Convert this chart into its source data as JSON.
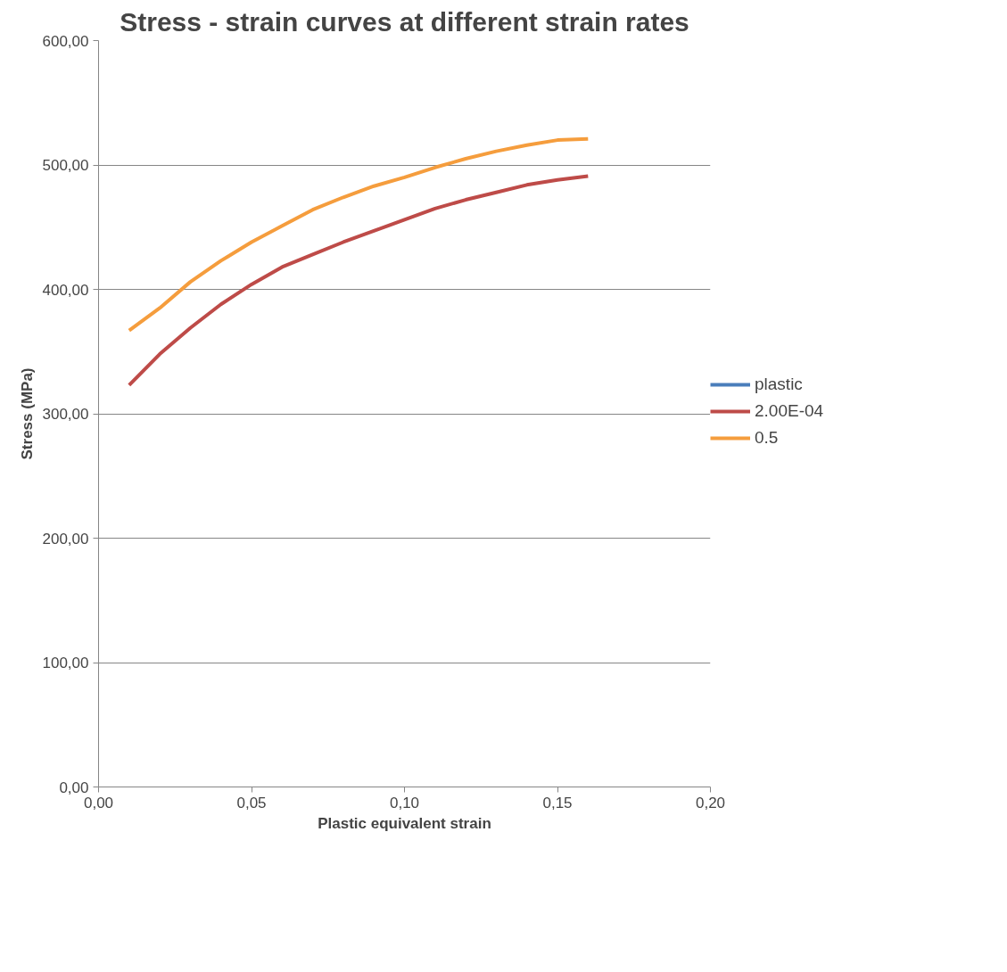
{
  "chart_data": {
    "type": "line",
    "title": "Stress - strain curves at different strain rates",
    "xlabel": "Plastic equivalent strain",
    "ylabel": "Stress (MPa)",
    "x": [
      0.01,
      0.02,
      0.03,
      0.04,
      0.05,
      0.06,
      0.07,
      0.08,
      0.09,
      0.1,
      0.11,
      0.12,
      0.13,
      0.14,
      0.15,
      0.16
    ],
    "series": [
      {
        "name": "plastic",
        "color": "#4a7ebb",
        "values": [
          null,
          null,
          null,
          null,
          null,
          null,
          null,
          null,
          null,
          null,
          null,
          null,
          null,
          null,
          null,
          null
        ]
      },
      {
        "name": "2.00E-04",
        "color": "#be4b48",
        "values": [
          323,
          348,
          369,
          388,
          404,
          418,
          428,
          438,
          447,
          456,
          465,
          472,
          478,
          484,
          488,
          491
        ]
      },
      {
        "name": "0.5",
        "color": "#f59d3d",
        "values": [
          367,
          385,
          406,
          423,
          438,
          451,
          464,
          474,
          483,
          490,
          498,
          505,
          511,
          516,
          520,
          521
        ]
      }
    ],
    "xlim": [
      0,
      0.2
    ],
    "ylim": [
      0,
      600
    ],
    "xticks": [
      {
        "value": 0,
        "label": "0,00"
      },
      {
        "value": 0.05,
        "label": "0,05"
      },
      {
        "value": 0.1,
        "label": "0,10"
      },
      {
        "value": 0.15,
        "label": "0,15"
      },
      {
        "value": 0.2,
        "label": "0,20"
      }
    ],
    "yticks": [
      {
        "value": 0,
        "label": "0,00"
      },
      {
        "value": 100,
        "label": "100,00"
      },
      {
        "value": 200,
        "label": "200,00"
      },
      {
        "value": 300,
        "label": "300,00"
      },
      {
        "value": 400,
        "label": "400,00"
      },
      {
        "value": 500,
        "label": "500,00"
      },
      {
        "value": 600,
        "label": "600,00"
      }
    ],
    "grid": "y",
    "legend": "right",
    "marker": "none",
    "line_style": "solid"
  }
}
